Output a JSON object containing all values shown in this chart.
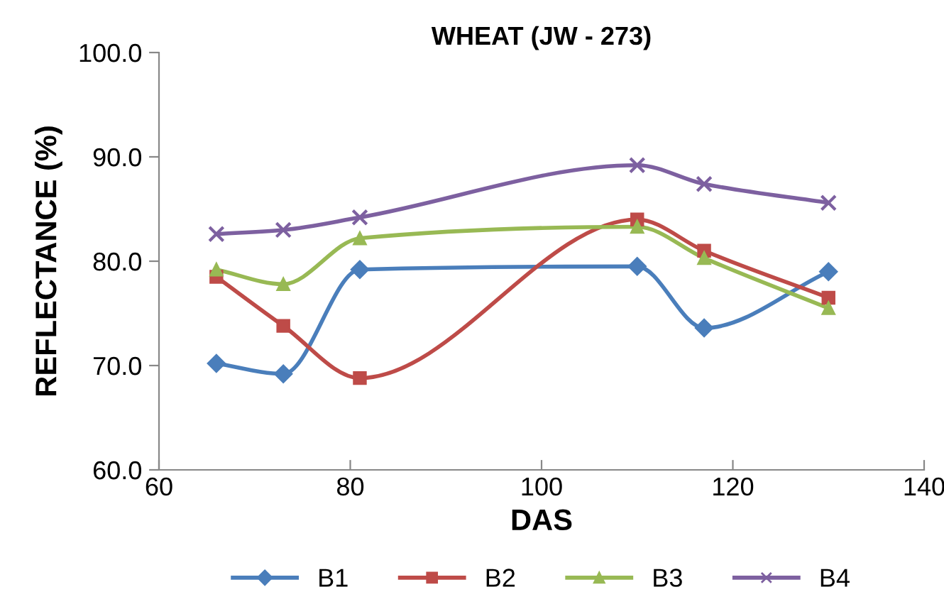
{
  "chart_data": {
    "type": "line",
    "title": "WHEAT (JW - 273)",
    "xlabel": "DAS",
    "ylabel": "REFLECTANCE (%)",
    "x": [
      66,
      73,
      81,
      110,
      117,
      130
    ],
    "series": [
      {
        "name": "B1",
        "color": "#4a7ebb",
        "marker": "diamond",
        "values": [
          70.2,
          69.2,
          79.2,
          79.5,
          73.6,
          79.0
        ]
      },
      {
        "name": "B2",
        "color": "#be4b48",
        "marker": "square",
        "values": [
          78.5,
          73.8,
          68.8,
          84.0,
          81.0,
          76.5
        ]
      },
      {
        "name": "B3",
        "color": "#98b954",
        "marker": "triangle",
        "values": [
          79.2,
          77.8,
          82.2,
          83.3,
          80.3,
          75.5
        ]
      },
      {
        "name": "B4",
        "color": "#7d60a0",
        "marker": "cross",
        "values": [
          82.6,
          83.0,
          84.2,
          89.2,
          87.4,
          85.6
        ]
      }
    ],
    "xlim": [
      60,
      140
    ],
    "xticks": [
      60,
      80,
      100,
      120,
      140
    ],
    "ylim": [
      60,
      100
    ],
    "yticks": [
      {
        "value": 60,
        "label": "60.0"
      },
      {
        "value": 70,
        "label": "70.0"
      },
      {
        "value": 80,
        "label": "80.0"
      },
      {
        "value": 90,
        "label": "90.0"
      },
      {
        "value": 100,
        "label": "100.0"
      }
    ],
    "grid": false,
    "legend": "bottom",
    "line_style": "solid"
  }
}
